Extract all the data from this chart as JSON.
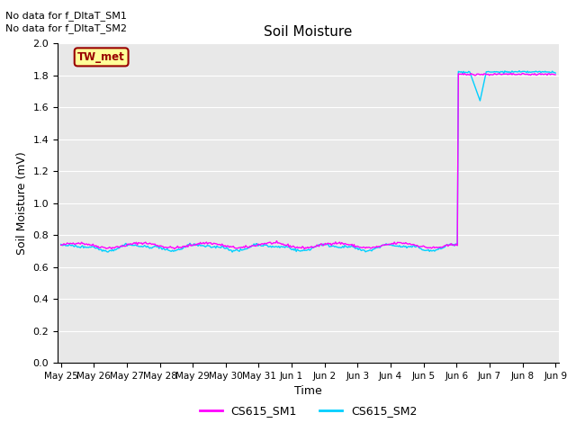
{
  "title": "Soil Moisture",
  "xlabel": "Time",
  "ylabel": "Soil Moisture (mV)",
  "ylim": [
    0.0,
    2.0
  ],
  "yticks": [
    0.0,
    0.2,
    0.4,
    0.6,
    0.8,
    1.0,
    1.2,
    1.4,
    1.6,
    1.8,
    2.0
  ],
  "xtick_labels": [
    "May 25",
    "May 26",
    "May 27",
    "May 28",
    "May 29",
    "May 30",
    "May 31",
    "Jun 1",
    "Jun 2",
    "Jun 3",
    "Jun 4",
    "Jun 5",
    "Jun 6",
    "Jun 7",
    "Jun 8",
    "Jun 9"
  ],
  "color_sm1": "#FF00FF",
  "color_sm2": "#00CFFF",
  "legend_label_sm1": "CS615_SM1",
  "legend_label_sm2": "CS615_SM2",
  "annotation1": "No data for f_DltaT_SM1",
  "annotation2": "No data for f_DltaT_SM2",
  "legend_box_label": "TW_met",
  "legend_box_facecolor": "#FFFF99",
  "legend_box_edgecolor": "#990000",
  "bg_color": "#E8E8E8",
  "fig_bg_color": "#FFFFFF",
  "base_value": 0.735,
  "n_points": 480
}
